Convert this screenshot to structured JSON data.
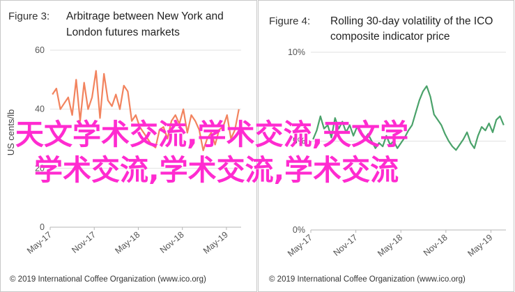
{
  "chart_data": [
    {
      "type": "line",
      "figure_label": "Figure 3:",
      "title_line1": "Arbitrage between New York and",
      "title_line2": "London futures markets",
      "ylabel": "US cents/lb",
      "ylim": [
        0,
        60
      ],
      "y_ticks": [
        "0",
        "20",
        "40",
        "60"
      ],
      "x_ticks": [
        "May-17",
        "Nov-17",
        "May-18",
        "Nov-18",
        "May-19"
      ],
      "x_range": [
        0,
        26
      ],
      "tick_positions": [
        0,
        6,
        12,
        18,
        24
      ],
      "series_color": "#f2835e",
      "values": [
        45,
        47,
        40,
        42,
        44,
        38,
        50,
        36,
        49,
        40,
        44,
        53,
        37,
        52,
        43,
        41,
        45,
        40,
        48,
        46,
        36,
        38,
        34,
        32,
        30,
        28,
        27,
        33,
        34,
        30,
        36,
        38,
        35,
        40,
        32,
        38,
        36,
        33,
        26,
        30,
        32,
        28,
        33,
        34,
        38,
        30,
        33,
        40
      ],
      "credit": "© 2019 International Coffee Organization (www.ico.org)"
    },
    {
      "type": "line",
      "figure_label": "Figure 4:",
      "title_line1": "Rolling 30-day volatility of the ICO",
      "title_line2": "composite indicator price",
      "ylim": [
        0,
        10
      ],
      "y_ticks": [
        "0%",
        "5%",
        "10%"
      ],
      "x_ticks": [
        "May-17",
        "Nov-17",
        "May-18",
        "Nov-18",
        "May-19"
      ],
      "x_range": [
        0,
        26
      ],
      "tick_positions": [
        0,
        6,
        12,
        18,
        24
      ],
      "series_color": "#4aa26a",
      "values": [
        5.1,
        5.6,
        6.4,
        5.7,
        5.9,
        5.2,
        6.3,
        5.7,
        6.1,
        5.5,
        5.9,
        5.3,
        5.8,
        5.6,
        5.1,
        5.4,
        5.0,
        4.6,
        4.9,
        4.7,
        5.3,
        4.8,
        5.0,
        4.6,
        4.9,
        5.2,
        5.6,
        5.9,
        6.6,
        7.3,
        7.8,
        8.1,
        7.5,
        6.5,
        6.2,
        5.9,
        5.4,
        5.0,
        4.7,
        4.5,
        4.8,
        5.1,
        5.5,
        4.9,
        4.6,
        5.3,
        5.8,
        5.6,
        6.0,
        5.5,
        6.2,
        6.4,
        5.9
      ],
      "credit": "© 2019 International Coffee Organization (www.ico.org)"
    }
  ],
  "overlay": {
    "line1": "天文学术交流,学术交流,天文学",
    "line2": "学术交流,学术交流,学术交流",
    "color": "#ff2bd0"
  }
}
